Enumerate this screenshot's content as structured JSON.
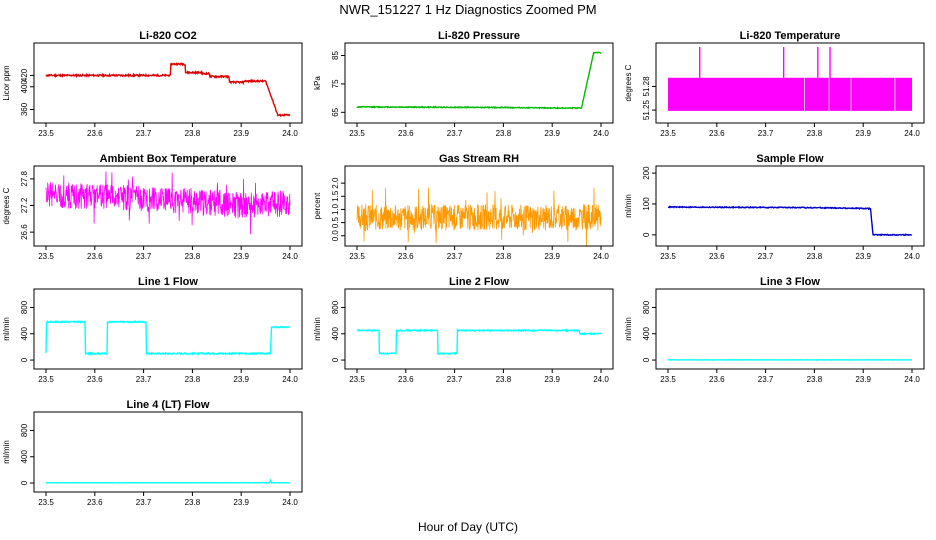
{
  "title": "NWR_151227  1 Hz Diagnostics Zoomed PM",
  "xlabel": "Hour of Day (UTC)",
  "chart_data": [
    {
      "type": "line",
      "title": "Li-820 CO2",
      "ylabel": "Licor ppm",
      "color": "#dd0000",
      "xlim": [
        23.5,
        24.0
      ],
      "ylim": [
        345,
        470
      ],
      "xticks": [
        "23.5",
        "23.6",
        "23.7",
        "23.8",
        "23.9",
        "24.0"
      ],
      "yticks": [
        "360",
        "400",
        "420"
      ],
      "noise": 1.5,
      "x": [
        23.5,
        23.755,
        23.756,
        23.785,
        23.786,
        23.82,
        23.821,
        23.835,
        23.836,
        23.875,
        23.876,
        23.905,
        23.906,
        23.95,
        23.965,
        23.975,
        24.0
      ],
      "y": [
        420,
        420,
        440,
        440,
        425,
        425,
        423,
        423,
        418,
        418,
        408,
        408,
        410,
        410,
        375,
        350,
        350
      ]
    },
    {
      "type": "line",
      "title": "Li-820 Pressure",
      "ylabel": "kPa",
      "color": "#00bb00",
      "xlim": [
        23.5,
        24.0
      ],
      "ylim": [
        63,
        88
      ],
      "xticks": [
        "23.5",
        "23.6",
        "23.7",
        "23.8",
        "23.9",
        "24.0"
      ],
      "yticks": [
        "65",
        "75",
        "85"
      ],
      "noise": 0.15,
      "x": [
        23.5,
        23.8,
        23.91,
        23.96,
        23.985,
        24.0
      ],
      "y": [
        66.9,
        66.7,
        66.5,
        66.5,
        86.0,
        86.0
      ]
    },
    {
      "type": "band",
      "title": "Li-820 Temperature",
      "ylabel": "degrees C",
      "color": "#ff00ff",
      "xlim": [
        23.5,
        24.0
      ],
      "ylim": [
        51.24,
        51.33
      ],
      "xticks": [
        "23.5",
        "23.6",
        "23.7",
        "23.8",
        "23.9",
        "24.0"
      ],
      "yticks": [
        "51.25",
        "51.28"
      ],
      "band": [
        51.249,
        51.291
      ],
      "spikes": [
        {
          "x": 23.565,
          "y": 51.33
        },
        {
          "x": 23.737,
          "y": 51.33
        },
        {
          "x": 23.807,
          "y": 51.33
        },
        {
          "x": 23.832,
          "y": 51.33
        }
      ]
    },
    {
      "type": "noise",
      "title": "Ambient Box Temperature",
      "ylabel": "degrees C",
      "color": "#ff00ff",
      "xlim": [
        23.5,
        24.0
      ],
      "ylim": [
        26.4,
        28.0
      ],
      "xticks": [
        "23.5",
        "23.6",
        "23.7",
        "23.8",
        "23.9",
        "24.0"
      ],
      "yticks": [
        "26.6",
        "27.2",
        "27.8"
      ],
      "x": [
        23.5,
        23.6,
        23.7,
        23.8,
        23.9,
        24.0
      ],
      "y": [
        27.45,
        27.4,
        27.35,
        27.3,
        27.2,
        27.25
      ],
      "amp": 0.3,
      "seed": 7
    },
    {
      "type": "noise",
      "title": "Gas Stream RH",
      "ylabel": "percent",
      "color": "#ff9900",
      "xlim": [
        23.5,
        24.0
      ],
      "ylim": [
        -0.2,
        2.5
      ],
      "xticks": [
        "23.5",
        "23.6",
        "23.7",
        "23.8",
        "23.9",
        "24.0"
      ],
      "yticks": [
        "0.0",
        "0.5",
        "1.0",
        "1.5",
        "2.0"
      ],
      "x": [
        23.5,
        24.0
      ],
      "y": [
        0.7,
        0.7
      ],
      "amp": 0.5,
      "seed": 3
    },
    {
      "type": "line",
      "title": "Sample Flow",
      "ylabel": "ml/min",
      "color": "#0000cc",
      "xlim": [
        23.5,
        24.0
      ],
      "ylim": [
        -20,
        210
      ],
      "xticks": [
        "23.5",
        "23.6",
        "23.7",
        "23.8",
        "23.9",
        "24.0"
      ],
      "yticks": [
        "0",
        "100",
        "200"
      ],
      "noise": 1.5,
      "x": [
        23.5,
        23.8,
        23.915,
        23.92,
        24.0
      ],
      "y": [
        90,
        88,
        85,
        0,
        0
      ]
    },
    {
      "type": "line",
      "title": "Line 1 Flow",
      "ylabel": "ml/min",
      "color": "#00ffff",
      "xlim": [
        23.5,
        24.0
      ],
      "ylim": [
        -60,
        1020
      ],
      "xticks": [
        "23.5",
        "23.6",
        "23.7",
        "23.8",
        "23.9",
        "24.0"
      ],
      "yticks": [
        "0",
        "400",
        "800"
      ],
      "noise": 10,
      "x": [
        23.5,
        23.501,
        23.58,
        23.581,
        23.625,
        23.626,
        23.705,
        23.706,
        23.96,
        23.962,
        24.0
      ],
      "y": [
        100,
        580,
        580,
        100,
        100,
        580,
        580,
        100,
        100,
        500,
        500
      ]
    },
    {
      "type": "line",
      "title": "Line 2 Flow",
      "ylabel": "ml/min",
      "color": "#00ffff",
      "xlim": [
        23.5,
        24.0
      ],
      "ylim": [
        -60,
        1020
      ],
      "xticks": [
        "23.5",
        "23.6",
        "23.7",
        "23.8",
        "23.9",
        "24.0"
      ],
      "yticks": [
        "0",
        "400",
        "800"
      ],
      "noise": 8,
      "x": [
        23.5,
        23.545,
        23.546,
        23.58,
        23.581,
        23.665,
        23.666,
        23.705,
        23.706,
        23.955,
        23.957,
        24.0
      ],
      "y": [
        450,
        450,
        100,
        100,
        450,
        450,
        100,
        100,
        450,
        450,
        400,
        400
      ]
    },
    {
      "type": "line",
      "title": "Line 3 Flow",
      "ylabel": "ml/min",
      "color": "#00ffff",
      "xlim": [
        23.5,
        24.0
      ],
      "ylim": [
        -60,
        1020
      ],
      "xticks": [
        "23.5",
        "23.6",
        "23.7",
        "23.8",
        "23.9",
        "24.0"
      ],
      "yticks": [
        "0",
        "400",
        "800"
      ],
      "noise": 2,
      "x": [
        23.5,
        24.0
      ],
      "y": [
        3,
        3
      ]
    },
    {
      "type": "line",
      "title": "Line 4 (LT) Flow",
      "ylabel": "ml/min",
      "color": "#00ffff",
      "xlim": [
        23.5,
        24.0
      ],
      "ylim": [
        -60,
        1020
      ],
      "xticks": [
        "23.5",
        "23.6",
        "23.7",
        "23.8",
        "23.9",
        "24.0"
      ],
      "yticks": [
        "0",
        "400",
        "800"
      ],
      "noise": 2,
      "x": [
        23.5,
        23.958,
        23.96,
        23.962,
        24.0
      ],
      "y": [
        5,
        5,
        40,
        5,
        5
      ]
    }
  ]
}
